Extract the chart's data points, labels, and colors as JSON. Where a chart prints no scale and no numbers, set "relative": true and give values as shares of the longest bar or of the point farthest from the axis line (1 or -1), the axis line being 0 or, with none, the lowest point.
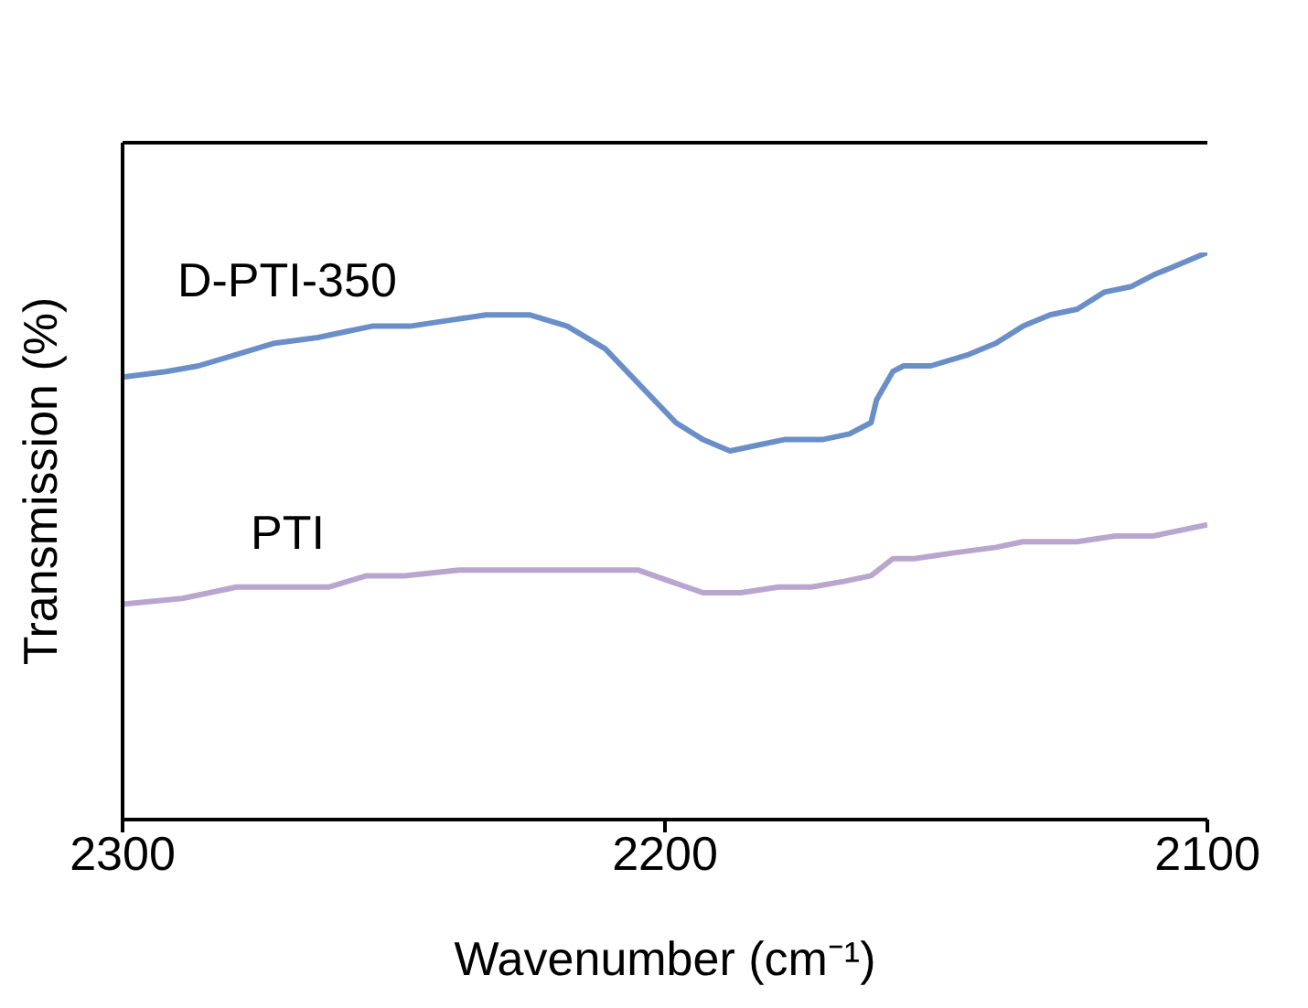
{
  "chart_data": {
    "type": "line",
    "xlabel": "Wavenumber (cm⁻¹)",
    "ylabel": "Transmission (%)",
    "relative": true,
    "xlim": [
      2300,
      2100
    ],
    "xticks": [
      2300,
      2200,
      2100
    ],
    "series": [
      {
        "name": "D-PTI-350",
        "color": "#6a8fc8",
        "x": [
          2300,
          2292,
          2286,
          2279,
          2272,
          2264,
          2259,
          2254,
          2247,
          2240,
          2233,
          2225,
          2218,
          2211,
          2205,
          2198,
          2193,
          2188,
          2183,
          2178,
          2171,
          2166,
          2162,
          2161,
          2158,
          2156,
          2151,
          2144,
          2139,
          2134,
          2129,
          2124,
          2119,
          2114,
          2110,
          2105,
          2100
        ],
        "values": [
          0.78,
          0.79,
          0.8,
          0.82,
          0.84,
          0.85,
          0.86,
          0.87,
          0.87,
          0.88,
          0.89,
          0.89,
          0.87,
          0.83,
          0.77,
          0.7,
          0.67,
          0.65,
          0.66,
          0.67,
          0.67,
          0.68,
          0.7,
          0.74,
          0.79,
          0.8,
          0.8,
          0.82,
          0.84,
          0.87,
          0.89,
          0.9,
          0.93,
          0.94,
          0.96,
          0.98,
          1
        ]
      },
      {
        "name": "PTI",
        "color": "#b9a6cf",
        "x": [
          2300,
          2289,
          2279,
          2269,
          2262,
          2255,
          2248,
          2238,
          2226,
          2218,
          2211,
          2205,
          2199,
          2193,
          2186,
          2179,
          2173,
          2167,
          2162,
          2158,
          2154,
          2147,
          2139,
          2134,
          2124,
          2117,
          2110,
          2100
        ],
        "values": [
          0.38,
          0.39,
          0.41,
          0.41,
          0.41,
          0.43,
          0.43,
          0.44,
          0.44,
          0.44,
          0.44,
          0.44,
          0.42,
          0.4,
          0.4,
          0.41,
          0.41,
          0.42,
          0.43,
          0.46,
          0.46,
          0.47,
          0.48,
          0.49,
          0.49,
          0.5,
          0.5,
          0.52
        ]
      }
    ]
  }
}
